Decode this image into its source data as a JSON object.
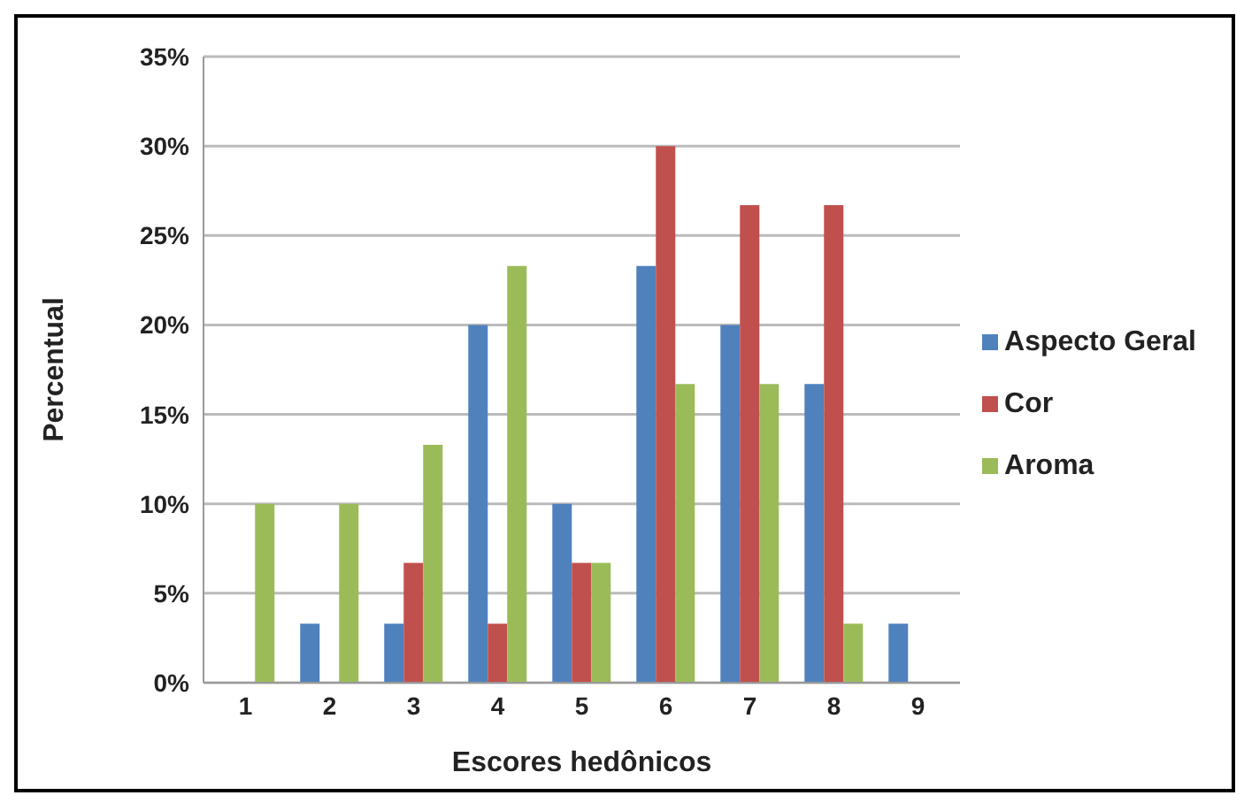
{
  "chart_data": {
    "type": "bar",
    "xlabel": "Escores hedônicos",
    "ylabel": "Percentual",
    "categories": [
      "1",
      "2",
      "3",
      "4",
      "5",
      "6",
      "7",
      "8",
      "9"
    ],
    "series": [
      {
        "name": "Aspecto Geral",
        "color": "#4f81bd",
        "values": [
          0,
          3.3,
          3.3,
          20,
          10,
          23.3,
          20,
          16.7,
          3.3
        ]
      },
      {
        "name": "Cor",
        "color": "#c0504d",
        "values": [
          0,
          0,
          6.7,
          3.3,
          6.7,
          30,
          26.7,
          26.7,
          0
        ]
      },
      {
        "name": "Aroma",
        "color": "#9bbb59",
        "values": [
          10,
          10,
          13.3,
          23.3,
          6.7,
          16.7,
          16.7,
          3.3,
          0
        ]
      }
    ],
    "ylim": [
      0,
      35
    ],
    "yticks": [
      {
        "value": 0,
        "label": "0%"
      },
      {
        "value": 5,
        "label": "5%"
      },
      {
        "value": 10,
        "label": "10%"
      },
      {
        "value": 15,
        "label": "15%"
      },
      {
        "value": 20,
        "label": "20%"
      },
      {
        "value": 25,
        "label": "25%"
      },
      {
        "value": 30,
        "label": "30%"
      },
      {
        "value": 35,
        "label": "35%"
      }
    ],
    "grid": "y",
    "legend": "right"
  }
}
